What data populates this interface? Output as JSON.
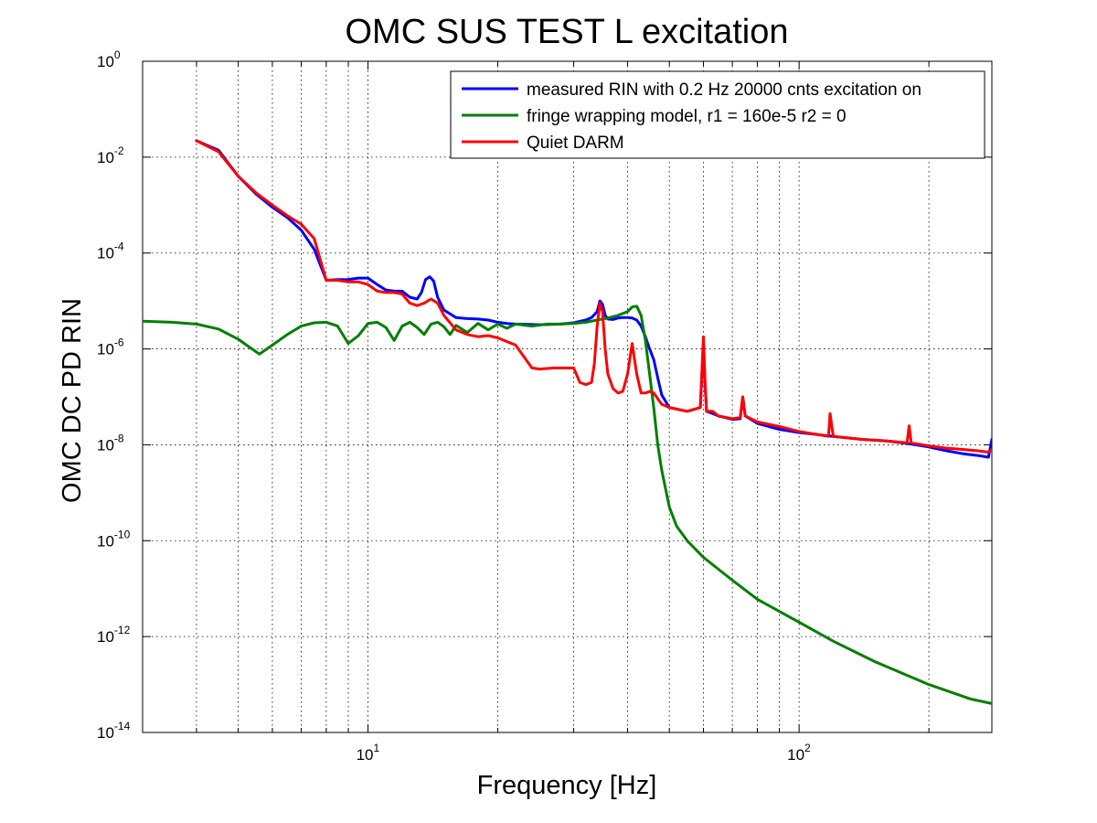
{
  "chart_data": {
    "type": "line",
    "title": "OMC SUS TEST L excitation",
    "xlabel": "Frequency [Hz]",
    "ylabel": "OMC DC PD RIN",
    "xscale": "log",
    "yscale": "log",
    "xlim": [
      3,
      280
    ],
    "ylim": [
      1e-14,
      1
    ],
    "grid": true,
    "legend_position": "top-right",
    "x_ticks": [
      {
        "value": 10,
        "base": "10",
        "exp": "1"
      },
      {
        "value": 100,
        "base": "10",
        "exp": "2"
      }
    ],
    "y_ticks": [
      {
        "value": 1,
        "base": "10",
        "exp": "0"
      },
      {
        "value": 0.01,
        "base": "10",
        "exp": "-2"
      },
      {
        "value": 0.0001,
        "base": "10",
        "exp": "-4"
      },
      {
        "value": 1e-06,
        "base": "10",
        "exp": "-6"
      },
      {
        "value": 1e-08,
        "base": "10",
        "exp": "-8"
      },
      {
        "value": 1e-10,
        "base": "10",
        "exp": "-10"
      },
      {
        "value": 1e-12,
        "base": "10",
        "exp": "-12"
      },
      {
        "value": 1e-14,
        "base": "10",
        "exp": "-14"
      }
    ],
    "series": [
      {
        "name": "measured RIN with 0.2 Hz 20000 cnts excitation on",
        "color": "#0000ff",
        "x": [
          4,
          4.5,
          5,
          5.5,
          6,
          6.5,
          7,
          7.5,
          8,
          8.5,
          9,
          9.5,
          10,
          10.5,
          11,
          11.5,
          12,
          12.5,
          13,
          13.3,
          13.6,
          13.9,
          14.2,
          14.5,
          15,
          16,
          17,
          18,
          19,
          20,
          21,
          22,
          25,
          28,
          30,
          32,
          33,
          34,
          34.5,
          35,
          35.5,
          36,
          37,
          38,
          39,
          40,
          41,
          42,
          43,
          44,
          45,
          46,
          47,
          48,
          50,
          55,
          59,
          60,
          60.5,
          61,
          63,
          65,
          70,
          73,
          74,
          75,
          80,
          90,
          100,
          120,
          140,
          160,
          180,
          200,
          220,
          240,
          260,
          275,
          280
        ],
        "y": [
          0.022,
          0.014,
          0.004,
          0.0017,
          0.0009,
          0.00055,
          0.0003,
          0.00012,
          2.7e-05,
          2.8e-05,
          2.8e-05,
          3e-05,
          3e-05,
          2.2e-05,
          1.7e-05,
          1.6e-05,
          1.6e-05,
          1.2e-05,
          1.1e-05,
          1.5e-05,
          2.8e-05,
          3.2e-05,
          2.6e-05,
          1.2e-05,
          6.5e-06,
          4.5e-06,
          4.3e-06,
          4.2e-06,
          4e-06,
          3.6e-06,
          3.4e-06,
          3.3e-06,
          3.2e-06,
          3.3e-06,
          3.5e-06,
          4e-06,
          4.5e-06,
          6e-06,
          1e-05,
          8.5e-06,
          5e-06,
          4.2e-06,
          4.1e-06,
          4.4e-06,
          4.5e-06,
          4.5e-06,
          4.4e-06,
          4e-06,
          3e-06,
          1.8e-06,
          1e-06,
          6e-07,
          2.5e-07,
          1.1e-07,
          6e-08,
          5e-08,
          6e-08,
          1.4e-06,
          2e-07,
          5e-08,
          4.5e-08,
          4e-08,
          3.4e-08,
          3.5e-08,
          1e-07,
          4e-08,
          2.8e-08,
          2.1e-08,
          1.8e-08,
          1.5e-08,
          1.3e-08,
          1.2e-08,
          1.05e-08,
          9e-09,
          7.5e-09,
          6.5e-09,
          6e-09,
          5.5e-09,
          1.3e-08
        ]
      },
      {
        "name": "fringe wrapping model, r1 = 160e-5 r2 = 0",
        "color": "#007f00",
        "x": [
          3,
          3.5,
          4,
          4.5,
          5,
          5.3,
          5.6,
          6,
          6.5,
          7,
          7.5,
          8,
          8.5,
          9,
          9.5,
          10,
          10.5,
          11,
          11.5,
          12,
          12.5,
          13,
          13.5,
          14,
          14.5,
          15,
          15.5,
          16,
          17,
          18,
          19,
          20,
          21,
          22,
          24,
          26,
          28,
          30,
          32,
          34,
          36,
          38,
          40,
          41,
          42,
          43,
          44,
          45,
          46,
          47,
          48,
          50,
          52,
          55,
          60,
          70,
          80,
          100,
          120,
          150,
          200,
          250,
          280
        ],
        "y": [
          3.8e-06,
          3.6e-06,
          3.3e-06,
          2.6e-06,
          1.6e-06,
          1.1e-06,
          7.8e-07,
          1.2e-06,
          2e-06,
          3e-06,
          3.5e-06,
          3.6e-06,
          3e-06,
          1.3e-06,
          1.9e-06,
          3.4e-06,
          3.6e-06,
          2.8e-06,
          1.5e-06,
          3e-06,
          3.6e-06,
          2.8e-06,
          2e-06,
          3.3e-06,
          3.6e-06,
          2.9e-06,
          2e-06,
          3.1e-06,
          2.2e-06,
          3.4e-06,
          2.5e-06,
          3.3e-06,
          2.7e-06,
          3.3e-06,
          3e-06,
          3.3e-06,
          3.3e-06,
          3.4e-06,
          3.6e-06,
          4e-06,
          4.4e-06,
          5e-06,
          6e-06,
          7.5e-06,
          7.8e-06,
          5e-06,
          1.5e-06,
          3e-07,
          6e-08,
          1e-08,
          3e-09,
          5e-10,
          2e-10,
          1e-10,
          4.5e-11,
          1.5e-11,
          6e-12,
          2e-12,
          8e-13,
          3e-13,
          1e-13,
          5e-14,
          4e-14
        ]
      },
      {
        "name": "Quiet DARM",
        "color": "#ff0000",
        "x": [
          4,
          4.5,
          5,
          5.5,
          6,
          6.5,
          7,
          7.5,
          8,
          8.5,
          9,
          9.5,
          10,
          10.5,
          11,
          11.5,
          12,
          12.5,
          13,
          13.5,
          14,
          14.5,
          15,
          16,
          17,
          18,
          19,
          20,
          22,
          24,
          25,
          27,
          30,
          31,
          32,
          33,
          33.5,
          34,
          34.5,
          35,
          35.5,
          36,
          37,
          38,
          39,
          40,
          41,
          42,
          43,
          44,
          45,
          46,
          48,
          50,
          55,
          59,
          60,
          60.5,
          61,
          63,
          65,
          70,
          73,
          74,
          75,
          80,
          90,
          100,
          117,
          118,
          120,
          140,
          160,
          178,
          180,
          182,
          200,
          220,
          240,
          260,
          275,
          280
        ],
        "y": [
          0.022,
          0.013,
          0.004,
          0.0018,
          0.001,
          0.0006,
          0.0004,
          0.0002,
          2.7e-05,
          2.7e-05,
          2.5e-05,
          2.5e-05,
          2.2e-05,
          1.6e-05,
          1.5e-05,
          1.5e-05,
          1.4e-05,
          9e-06,
          8e-06,
          9e-06,
          1.1e-05,
          9e-06,
          5e-06,
          2.5e-06,
          2e-06,
          1.8e-06,
          1.9e-06,
          1.7e-06,
          1.2e-06,
          4e-07,
          3.8e-07,
          4e-07,
          4e-07,
          2e-07,
          1.8e-07,
          2e-07,
          5e-07,
          3e-06,
          9e-06,
          6e-06,
          1e-06,
          3e-07,
          1.5e-07,
          1.2e-07,
          1.3e-07,
          3e-07,
          1.3e-06,
          3e-07,
          1.2e-07,
          1.2e-07,
          1.3e-07,
          1.2e-07,
          7e-08,
          6e-08,
          5e-08,
          6e-08,
          1.8e-06,
          2e-07,
          5e-08,
          5e-08,
          4e-08,
          3.5e-08,
          3.7e-08,
          1e-07,
          4e-08,
          3e-08,
          2.4e-08,
          1.9e-08,
          1.5e-08,
          4.5e-08,
          1.5e-08,
          1.3e-08,
          1.2e-08,
          1.1e-08,
          2.5e-08,
          1.1e-08,
          9.5e-09,
          8.5e-09,
          8e-09,
          7.5e-09,
          7e-09,
          8e-09
        ]
      }
    ]
  }
}
